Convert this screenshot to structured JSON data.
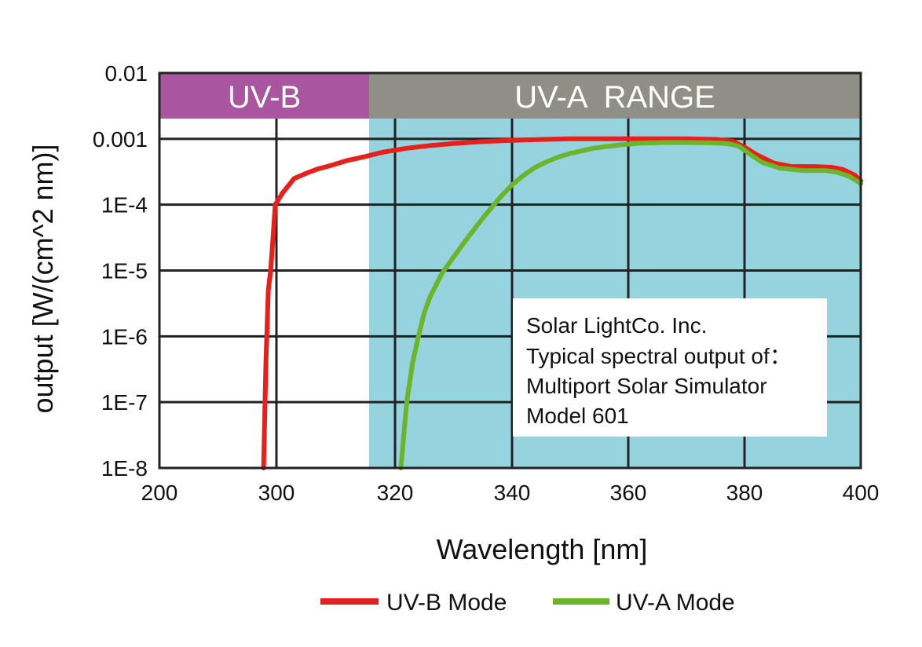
{
  "chart_data": {
    "type": "line",
    "xlabel": "Wavelength [nm]",
    "ylabel": "output [W/(cm^2 nm)]",
    "x_ticks": [
      "200",
      "300",
      "320",
      "340",
      "360",
      "380",
      "400"
    ],
    "y_ticks": [
      "0.01",
      "0.001",
      "1E-4",
      "1E-5",
      "1E-6",
      "1E-7",
      "1E-8"
    ],
    "y_scale": "log",
    "ylim": [
      1e-08,
      0.01
    ],
    "grid": true,
    "bands": [
      {
        "label": "UV-B",
        "color": "#aa55a0"
      },
      {
        "label": "UV-A  RANGE",
        "color": "#8f8f85"
      }
    ],
    "uva_region_fill": "#95d3de",
    "annotation": [
      "Solar LightCo. Inc.",
      "Typical spectral output of：",
      "Multiport Solar Simulator",
      "Model 601"
    ],
    "legend_position": "bottom",
    "series": [
      {
        "name": "UV-B Mode",
        "color": "#e8201c",
        "points": [
          [
            289,
            1e-08
          ],
          [
            291,
            4e-07
          ],
          [
            293,
            5e-06
          ],
          [
            295,
            1e-05
          ],
          [
            297,
            3e-05
          ],
          [
            299,
            0.0001
          ],
          [
            301,
            0.00015
          ],
          [
            303,
            0.00025
          ],
          [
            305,
            0.0003
          ],
          [
            307,
            0.00035
          ],
          [
            309,
            0.00039
          ],
          [
            312,
            0.00047
          ],
          [
            315,
            0.00054
          ],
          [
            318,
            0.00063
          ],
          [
            322,
            0.00072
          ],
          [
            326,
            0.00079
          ],
          [
            330,
            0.00085
          ],
          [
            335,
            0.00091
          ],
          [
            340,
            0.00095
          ],
          [
            345,
            0.00098
          ],
          [
            350,
            0.001
          ],
          [
            355,
            0.001
          ],
          [
            360,
            0.001
          ],
          [
            365,
            0.001
          ],
          [
            370,
            0.001
          ],
          [
            375,
            0.00098
          ],
          [
            378,
            0.00092
          ],
          [
            380,
            0.00075
          ],
          [
            382,
            0.00058
          ],
          [
            385,
            0.00043
          ],
          [
            388,
            0.00038
          ],
          [
            392,
            0.00038
          ],
          [
            395,
            0.00037
          ],
          [
            397,
            0.00034
          ],
          [
            399,
            0.00028
          ],
          [
            400,
            0.00023
          ]
        ]
      },
      {
        "name": "UV-A Mode",
        "color": "#6cb42a",
        "points": [
          [
            321,
            1e-08
          ],
          [
            322,
            1e-07
          ],
          [
            323,
            4e-07
          ],
          [
            324,
            1e-06
          ],
          [
            325,
            2.3e-06
          ],
          [
            326,
            4e-06
          ],
          [
            328,
            9e-06
          ],
          [
            330,
            1.6e-05
          ],
          [
            332,
            2.8e-05
          ],
          [
            334,
            4.8e-05
          ],
          [
            336,
            8e-05
          ],
          [
            338,
            0.00013
          ],
          [
            340,
            0.0002
          ],
          [
            342,
            0.00028
          ],
          [
            344,
            0.00037
          ],
          [
            346,
            0.00045
          ],
          [
            348,
            0.00053
          ],
          [
            350,
            0.0006
          ],
          [
            354,
            0.00072
          ],
          [
            358,
            0.0008
          ],
          [
            362,
            0.00086
          ],
          [
            366,
            0.00088
          ],
          [
            370,
            0.00088
          ],
          [
            374,
            0.00087
          ],
          [
            377,
            0.00085
          ],
          [
            379,
            0.00078
          ],
          [
            381,
            0.00058
          ],
          [
            383,
            0.00044
          ],
          [
            386,
            0.00036
          ],
          [
            390,
            0.00033
          ],
          [
            394,
            0.00033
          ],
          [
            396,
            0.00031
          ],
          [
            398,
            0.00027
          ],
          [
            400,
            0.00021
          ]
        ]
      }
    ]
  }
}
